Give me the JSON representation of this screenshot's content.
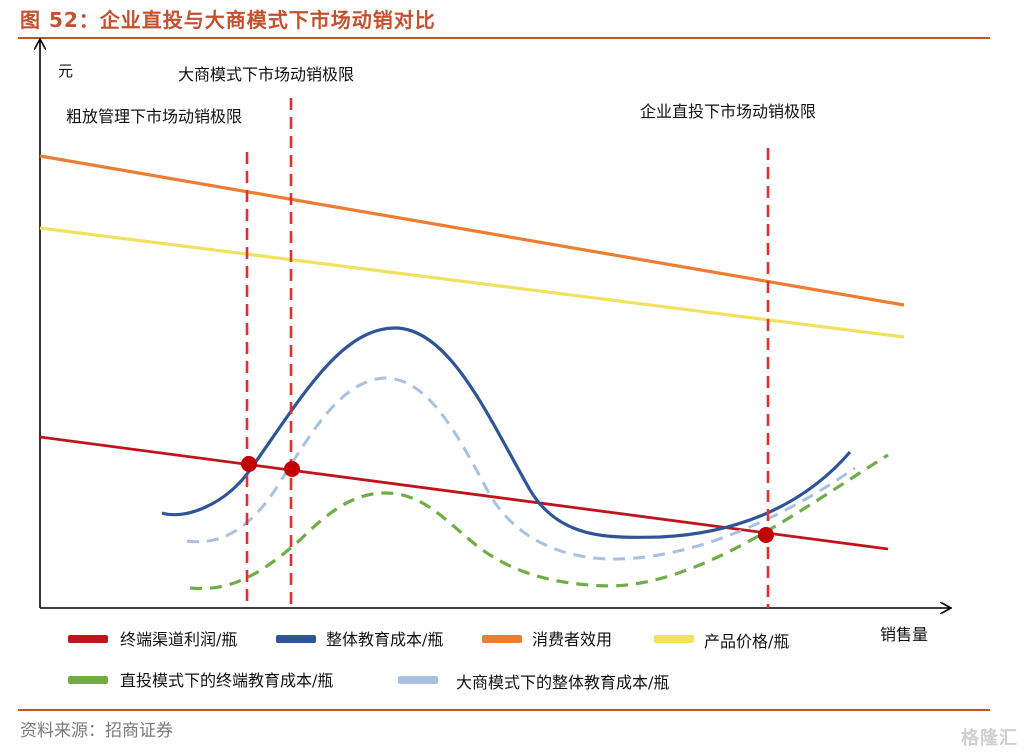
{
  "title": "图 52：企业直投与大商模式下市场动销对比",
  "source": "资料来源：招商证券",
  "watermark": "格隆汇",
  "axis": {
    "y_label": "元",
    "x_label": "销售量"
  },
  "annotations": {
    "crude_limit": "粗放管理下市场动销极限",
    "big_dealer_limit": "大商模式下市场动销极限",
    "direct_limit": "企业直投下市场动销极限"
  },
  "legend": [
    {
      "label": "终端渠道利润/瓶",
      "color": "#c0141c"
    },
    {
      "label": "整体教育成本/瓶",
      "color": "#2f5597"
    },
    {
      "label": "消费者效用",
      "color": "#ed7d31"
    },
    {
      "label": "产品价格/瓶",
      "color": "#f2e160"
    },
    {
      "label": "直投模式下的终端教育成本/瓶",
      "color": "#70ad47"
    },
    {
      "label": "大商模式下的整体教育成本/瓶",
      "color": "#a9c1e0"
    }
  ],
  "colors": {
    "title": "#c2512e",
    "limit_line": "#e03030",
    "intersection_dot": "#c00000"
  }
}
